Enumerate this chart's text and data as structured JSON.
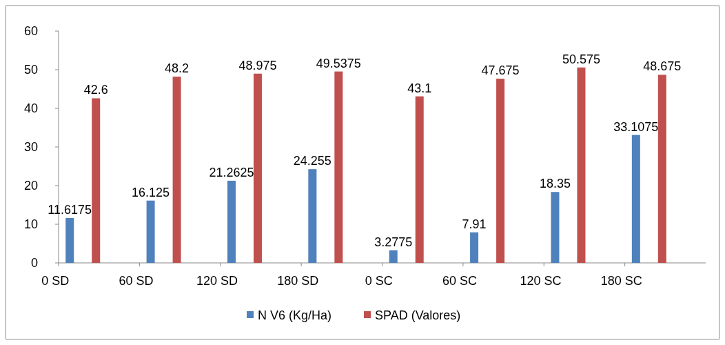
{
  "chart_data": {
    "type": "bar",
    "categories": [
      "0 SD",
      "60 SD",
      "120 SD",
      "180 SD",
      "0 SC",
      "60 SC",
      "120 SC",
      "180 SC"
    ],
    "series": [
      {
        "name": "N V6 (Kg/Ha)",
        "color": "#4f81bd",
        "values": [
          11.6175,
          16.125,
          21.2625,
          24.255,
          3.2775,
          7.91,
          18.35,
          33.1075
        ]
      },
      {
        "name": "SPAD (Valores)",
        "color": "#c0504d",
        "values": [
          42.6,
          48.2,
          48.975,
          49.5375,
          43.1,
          47.675,
          50.575,
          48.675
        ]
      }
    ],
    "ylim": [
      0,
      60
    ],
    "yticks": [
      0,
      10,
      20,
      30,
      40,
      50,
      60
    ],
    "data_labels": true,
    "grid": false,
    "legend": "bottom"
  }
}
